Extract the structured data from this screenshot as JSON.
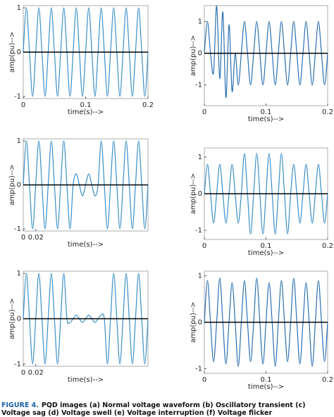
{
  "chart_data": [
    {
      "type": "line",
      "xlabel": "time(s)-->",
      "ylabel": "amp(pu)-->",
      "color": "#3a8fc8",
      "x": [
        0,
        0.005,
        0.01,
        0.015,
        0.02,
        0.025,
        0.03,
        0.035,
        0.04,
        0.045,
        0.05,
        0.055,
        0.06,
        0.065,
        0.07,
        0.075,
        0.08,
        0.085,
        0.09,
        0.095,
        0.1,
        0.105,
        0.11,
        0.115,
        0.12,
        0.125,
        0.13,
        0.135,
        0.14,
        0.145,
        0.15,
        0.155,
        0.16,
        0.165,
        0.17,
        0.175,
        0.18,
        0.185,
        0.19,
        0.195,
        0.2
      ],
      "values": [
        0,
        1,
        0,
        -1,
        0,
        1,
        0,
        -1,
        0,
        1,
        0,
        -1,
        0,
        1,
        0,
        -1,
        0,
        1,
        0,
        -1,
        0,
        1,
        0,
        -1,
        0,
        1,
        0,
        -1,
        0,
        1,
        0,
        -1,
        0,
        1,
        0,
        -1,
        0,
        1,
        0,
        -1,
        0
      ],
      "xlim": [
        0,
        0.2
      ],
      "xticks": [
        0,
        0.1,
        0.2
      ],
      "ylim": [
        -1.05,
        1.05
      ],
      "yticks": [
        -1,
        0,
        1
      ]
    },
    {
      "type": "line",
      "xlabel": "time(s)-->",
      "ylabel": "amp(pu)-->",
      "color": "#2a6fb0",
      "x": [
        0,
        0.005,
        0.01,
        0.015,
        0.02,
        0.025,
        0.03,
        0.035,
        0.04,
        0.045,
        0.05,
        0.055,
        0.06,
        0.065,
        0.07,
        0.075,
        0.08,
        0.085,
        0.09,
        0.095,
        0.1,
        0.105,
        0.11,
        0.115,
        0.12,
        0.125,
        0.13,
        0.135,
        0.14,
        0.145,
        0.15,
        0.155,
        0.16,
        0.165,
        0.17,
        0.175,
        0.18,
        0.185,
        0.19,
        0.195,
        0.2
      ],
      "values": [
        0,
        1,
        0,
        -0.6,
        1.5,
        -0.8,
        1.3,
        -1.4,
        0.9,
        -1.2,
        0,
        -1,
        0,
        1,
        0,
        -1,
        0,
        1,
        0,
        -1,
        0,
        1,
        0,
        -1,
        0,
        1,
        0,
        -1,
        0,
        1,
        0,
        -1,
        0,
        1,
        0,
        -1,
        0,
        1,
        0,
        -1,
        0
      ],
      "xlim": [
        0,
        0.2
      ],
      "xticks": [
        0,
        0.1,
        0.2
      ],
      "ylim": [
        -1.65,
        1.5
      ],
      "yticks": [
        -1,
        0,
        1
      ]
    },
    {
      "type": "line",
      "xlabel": "time(s)-->",
      "ylabel": "amp(pu)-->",
      "color": "#3a8fc8",
      "x": [
        0,
        0.005,
        0.01,
        0.015,
        0.02,
        0.025,
        0.03,
        0.035,
        0.04,
        0.045,
        0.05,
        0.055,
        0.06,
        0.065,
        0.07,
        0.075,
        0.08,
        0.085,
        0.09,
        0.095,
        0.1,
        0.105,
        0.11,
        0.115,
        0.12,
        0.125,
        0.13,
        0.135,
        0.14,
        0.145,
        0.15,
        0.155,
        0.16,
        0.165,
        0.17,
        0.175,
        0.18,
        0.185,
        0.19,
        0.195,
        0.2
      ],
      "values": [
        0,
        1,
        0,
        -1,
        0,
        1,
        0,
        -1,
        0,
        1,
        0,
        -1,
        0,
        1,
        0,
        -1,
        0,
        0.25,
        0,
        -0.25,
        0,
        0.25,
        0,
        -0.25,
        0,
        1,
        0,
        -1,
        0,
        1,
        0,
        -1,
        0,
        1,
        0,
        -1,
        0,
        1,
        0,
        -1,
        0
      ],
      "xlim": [
        0,
        0.2
      ],
      "xticks": [
        0,
        0.02
      ],
      "ylim": [
        -1.05,
        1.05
      ],
      "yticks": [
        -1,
        0,
        1
      ]
    },
    {
      "type": "line",
      "xlabel": "time(s)-->",
      "ylabel": "amp(pu)-->",
      "color": "#3a8fc8",
      "x": [
        0,
        0.005,
        0.01,
        0.015,
        0.02,
        0.025,
        0.03,
        0.035,
        0.04,
        0.045,
        0.05,
        0.055,
        0.06,
        0.065,
        0.07,
        0.075,
        0.08,
        0.085,
        0.09,
        0.095,
        0.1,
        0.105,
        0.11,
        0.115,
        0.12,
        0.125,
        0.13,
        0.135,
        0.14,
        0.145,
        0.15,
        0.155,
        0.16,
        0.165,
        0.17,
        0.175,
        0.18,
        0.185,
        0.19,
        0.195,
        0.2
      ],
      "values": [
        0,
        0.8,
        0,
        -0.8,
        0,
        0.8,
        0,
        -0.8,
        0,
        0.8,
        0,
        -0.8,
        0,
        1.1,
        0,
        -1.1,
        0,
        1.1,
        0,
        -1.1,
        0,
        1.1,
        0,
        -1.1,
        0,
        1.1,
        0,
        -1.1,
        0,
        0.8,
        0,
        -0.8,
        0,
        0.8,
        0,
        -0.8,
        0,
        0.8,
        0,
        -0.8,
        0
      ],
      "xlim": [
        0,
        0.2
      ],
      "xticks": [
        0,
        0.1,
        0.2
      ],
      "ylim": [
        -1.25,
        1.25
      ],
      "yticks": [
        -1,
        0,
        1
      ]
    },
    {
      "type": "line",
      "xlabel": "time(s)-->",
      "ylabel": "amp(pu)-->",
      "color": "#3a8fc8",
      "x": [
        0,
        0.005,
        0.01,
        0.015,
        0.02,
        0.025,
        0.03,
        0.035,
        0.04,
        0.045,
        0.05,
        0.055,
        0.06,
        0.065,
        0.07,
        0.075,
        0.08,
        0.085,
        0.09,
        0.095,
        0.1,
        0.105,
        0.11,
        0.115,
        0.12,
        0.125,
        0.13,
        0.135,
        0.14,
        0.145,
        0.15,
        0.155,
        0.16,
        0.165,
        0.17,
        0.175,
        0.18,
        0.185,
        0.19,
        0.195,
        0.2
      ],
      "values": [
        0,
        1,
        0,
        -1,
        0,
        1,
        0,
        -1,
        0,
        1,
        0,
        -1,
        0,
        1,
        0,
        -0.08,
        0,
        0.08,
        0,
        -0.08,
        0,
        0.08,
        0,
        -0.08,
        0,
        0.08,
        0,
        -1,
        0,
        1,
        0,
        -1,
        0,
        1,
        0,
        -1,
        0,
        1,
        0,
        -1,
        0
      ],
      "xlim": [
        0,
        0.2
      ],
      "xticks": [
        0,
        0.02
      ],
      "ylim": [
        -1.05,
        1.05
      ],
      "yticks": [
        -1,
        0,
        1
      ]
    },
    {
      "type": "line",
      "xlabel": "time(s)-->",
      "ylabel": "amp(pu)-->",
      "color": "#2a6fb0",
      "x": [
        0,
        0.005,
        0.01,
        0.015,
        0.02,
        0.025,
        0.03,
        0.035,
        0.04,
        0.045,
        0.05,
        0.055,
        0.06,
        0.065,
        0.07,
        0.075,
        0.08,
        0.085,
        0.09,
        0.095,
        0.1,
        0.105,
        0.11,
        0.115,
        0.12,
        0.125,
        0.13,
        0.135,
        0.14,
        0.145,
        0.15,
        0.155,
        0.16,
        0.165,
        0.17,
        0.175,
        0.18,
        0.185,
        0.19,
        0.195,
        0.2
      ],
      "values": [
        0,
        0.9,
        0,
        -0.85,
        0,
        0.95,
        0,
        -0.9,
        0,
        0.85,
        0,
        -0.95,
        0,
        0.9,
        0,
        -0.85,
        0,
        0.95,
        0,
        -0.9,
        0,
        0.85,
        0,
        -0.95,
        0,
        0.9,
        0,
        -0.85,
        0,
        0.95,
        0,
        -0.9,
        0,
        0.85,
        0,
        -0.95,
        0,
        0.9,
        0,
        -0.85,
        0
      ],
      "xlim": [
        0,
        0.2
      ],
      "xticks": [
        0,
        0.1,
        0.2
      ],
      "ylim": [
        -1.1,
        1.1
      ],
      "yticks": [
        -1,
        0,
        1
      ]
    }
  ],
  "caption": {
    "label": "FIGURE 4.",
    "text": "PQD images (a) Normal voltage waveform (b) Oscillatory transient (c) Voltage sag (d) Voltage swell (e) Voltage interruption (f) Voltage flicker"
  }
}
